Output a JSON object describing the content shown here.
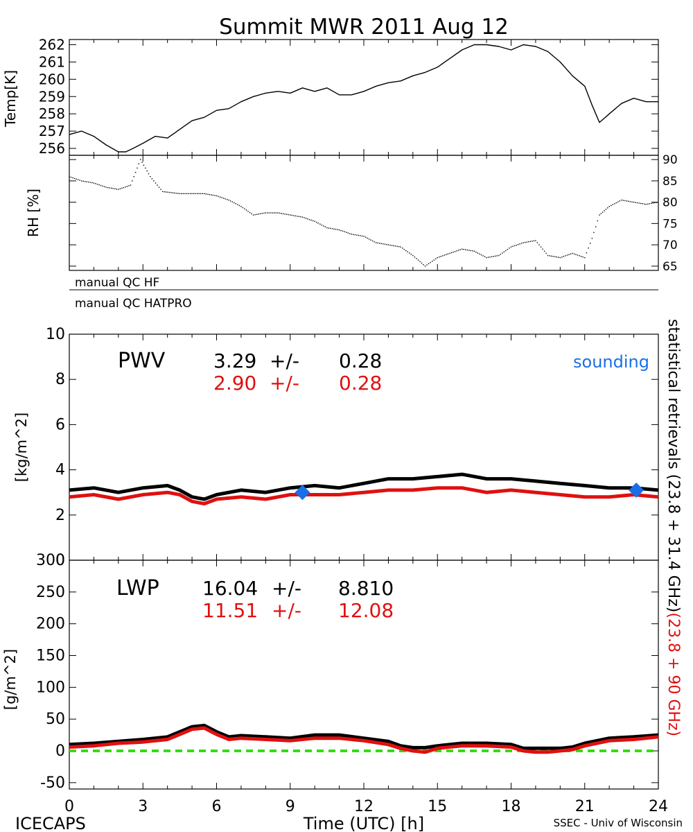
{
  "title": "Summit MWR 2011 Aug 12",
  "colors": {
    "black": "#000000",
    "red": "#e01010",
    "blue": "#1a6fe8",
    "green": "#33dd11"
  },
  "qc_labels": [
    "manual QC HF",
    "manual QC HATPRO"
  ],
  "footer": {
    "left": "ICECAPS",
    "center": "Time (UTC) [h]",
    "right": "SSEC - Univ of Wisconsin"
  },
  "right_label": {
    "black": "statistical retrievals (23.8 + 31.4 GHz)",
    "red": "(23.8 + 90 GHz)"
  },
  "chart_data": [
    {
      "type": "line",
      "panel": "temperature",
      "ylabel": "Temp[K]",
      "ylim": [
        255.6,
        262.3
      ],
      "yticks": [
        256,
        257,
        258,
        259,
        260,
        261,
        262
      ],
      "xlim": [
        0,
        24
      ],
      "series": [
        {
          "color": "#000000",
          "x": [
            0,
            0.5,
            1,
            1.5,
            2,
            2.3,
            2.6,
            3,
            3.5,
            4,
            4.5,
            5,
            5.5,
            6,
            6.5,
            7,
            7.5,
            8,
            8.5,
            9,
            9.5,
            10,
            10.5,
            11,
            11.5,
            12,
            12.5,
            13,
            13.5,
            14,
            14.5,
            15,
            15.5,
            16,
            16.5,
            17,
            17.5,
            18,
            18.5,
            19,
            19.5,
            20,
            20.5,
            21,
            21.3,
            21.6,
            22,
            22.5,
            23,
            23.5,
            24
          ],
          "y": [
            256.8,
            257.0,
            256.7,
            256.2,
            255.8,
            255.8,
            256.0,
            256.3,
            256.7,
            256.6,
            257.1,
            257.6,
            257.8,
            258.2,
            258.3,
            258.7,
            259.0,
            259.2,
            259.3,
            259.2,
            259.5,
            259.3,
            259.5,
            259.1,
            259.1,
            259.3,
            259.6,
            259.8,
            259.9,
            260.2,
            260.4,
            260.7,
            261.2,
            261.7,
            262.0,
            262.0,
            261.9,
            261.7,
            262.0,
            261.9,
            261.6,
            261.0,
            260.2,
            259.6,
            258.5,
            257.5,
            258.0,
            258.6,
            258.9,
            258.7,
            258.7
          ]
        }
      ]
    },
    {
      "type": "scatter",
      "panel": "relative-humidity",
      "ylabel": "RH [%]",
      "ylim": [
        64,
        91
      ],
      "yticks": [
        65,
        70,
        75,
        80,
        85,
        90
      ],
      "xlim": [
        0,
        24
      ],
      "series": [
        {
          "color": "#000000",
          "x": [
            0,
            0.5,
            1,
            1.5,
            2,
            2.5,
            2.9,
            3.3,
            3.8,
            4.5,
            5,
            5.5,
            6,
            6.5,
            7,
            7.5,
            8,
            8.5,
            9,
            9.5,
            10,
            10.5,
            11,
            11.5,
            12,
            12.5,
            13,
            13.5,
            14,
            14.5,
            15,
            15.5,
            16,
            16.5,
            17,
            17.5,
            18,
            18.5,
            19,
            19.5,
            20,
            20.5,
            21,
            21.3,
            21.6,
            22,
            22.5,
            23,
            23.5,
            24
          ],
          "y": [
            86,
            85,
            84.5,
            83.5,
            83,
            84,
            90,
            86,
            82.5,
            82,
            82,
            82,
            81.5,
            80.5,
            79,
            77,
            77.5,
            77.5,
            77,
            76.5,
            75.5,
            74,
            73.5,
            72.5,
            72,
            70.5,
            70,
            69.5,
            67.5,
            65,
            67,
            68,
            69,
            68.5,
            67,
            67.5,
            69.5,
            70.5,
            71,
            67.5,
            67,
            68,
            67,
            71.5,
            77,
            79,
            80.5,
            80,
            79.5,
            80
          ]
        }
      ]
    },
    {
      "type": "line",
      "panel": "pwv",
      "label": "PWV",
      "ylabel": "[kg/m^2]",
      "ylim": [
        0,
        10
      ],
      "yticks": [
        0,
        2,
        4,
        6,
        8,
        10
      ],
      "xlim": [
        0,
        24
      ],
      "stats": [
        {
          "mean": "3.29",
          "pm": "+/-",
          "std": "0.28",
          "color": "#000000"
        },
        {
          "mean": "2.90",
          "pm": "+/-",
          "std": "0.28",
          "color": "#e01010"
        }
      ],
      "sounding_label": "sounding",
      "series": [
        {
          "color": "#000000",
          "x": [
            0,
            1,
            2,
            3,
            4,
            4.5,
            5,
            5.5,
            6,
            7,
            8,
            9,
            10,
            11,
            12,
            13,
            14,
            15,
            16,
            17,
            18,
            19,
            20,
            21,
            22,
            23,
            24
          ],
          "y": [
            3.1,
            3.2,
            3.0,
            3.2,
            3.3,
            3.1,
            2.8,
            2.7,
            2.9,
            3.1,
            3.0,
            3.2,
            3.3,
            3.2,
            3.4,
            3.6,
            3.6,
            3.7,
            3.8,
            3.6,
            3.6,
            3.5,
            3.4,
            3.3,
            3.2,
            3.2,
            3.1
          ]
        },
        {
          "color": "#e01010",
          "x": [
            0,
            1,
            2,
            3,
            4,
            4.5,
            5,
            5.5,
            6,
            7,
            8,
            9,
            10,
            11,
            12,
            13,
            14,
            15,
            16,
            17,
            18,
            19,
            20,
            21,
            22,
            23,
            24
          ],
          "y": [
            2.8,
            2.9,
            2.7,
            2.9,
            3.0,
            2.9,
            2.6,
            2.5,
            2.7,
            2.8,
            2.7,
            2.9,
            2.9,
            2.9,
            3.0,
            3.1,
            3.1,
            3.2,
            3.2,
            3.0,
            3.1,
            3.0,
            2.9,
            2.8,
            2.8,
            2.9,
            2.8
          ]
        }
      ],
      "sounding_points": [
        {
          "x": 9.5,
          "y": 3.0
        },
        {
          "x": 23.1,
          "y": 3.1
        }
      ]
    },
    {
      "type": "line",
      "panel": "lwp",
      "label": "LWP",
      "ylabel": "[g/m^2]",
      "ylim": [
        -60,
        300
      ],
      "yticks": [
        -50,
        0,
        50,
        100,
        150,
        200,
        250,
        300
      ],
      "xlim": [
        0,
        24
      ],
      "xticks": [
        0,
        3,
        6,
        9,
        12,
        15,
        18,
        21,
        24
      ],
      "stats": [
        {
          "mean": "16.04",
          "pm": "+/-",
          "std": "8.810",
          "color": "#000000"
        },
        {
          "mean": "11.51",
          "pm": "+/-",
          "std": "12.08",
          "color": "#e01010"
        }
      ],
      "series": [
        {
          "color": "#000000",
          "x": [
            0,
            1,
            2,
            3,
            4,
            4.5,
            5,
            5.5,
            6,
            6.5,
            7,
            8,
            9,
            10,
            11,
            12,
            13,
            13.5,
            14,
            14.5,
            15,
            16,
            17,
            18,
            18.5,
            19,
            19.5,
            20,
            20.5,
            21,
            22,
            23,
            24
          ],
          "y": [
            10,
            12,
            15,
            18,
            22,
            30,
            38,
            40,
            30,
            22,
            24,
            22,
            20,
            25,
            25,
            20,
            15,
            8,
            5,
            5,
            8,
            12,
            12,
            10,
            4,
            4,
            4,
            4,
            6,
            12,
            20,
            22,
            25
          ]
        },
        {
          "color": "#e01010",
          "x": [
            0,
            1,
            2,
            3,
            4,
            4.5,
            5,
            5.5,
            6,
            6.5,
            7,
            8,
            9,
            10,
            11,
            12,
            13,
            13.5,
            14,
            14.5,
            15,
            16,
            17,
            18,
            18.5,
            19,
            19.5,
            20,
            20.5,
            21,
            22,
            23,
            24
          ],
          "y": [
            6,
            8,
            12,
            14,
            18,
            26,
            34,
            36,
            26,
            18,
            20,
            18,
            16,
            20,
            20,
            16,
            10,
            4,
            0,
            -2,
            4,
            8,
            8,
            6,
            0,
            -2,
            -2,
            0,
            2,
            8,
            16,
            18,
            22
          ]
        }
      ],
      "reference_line": {
        "y": 0,
        "color": "#33dd11"
      }
    }
  ]
}
